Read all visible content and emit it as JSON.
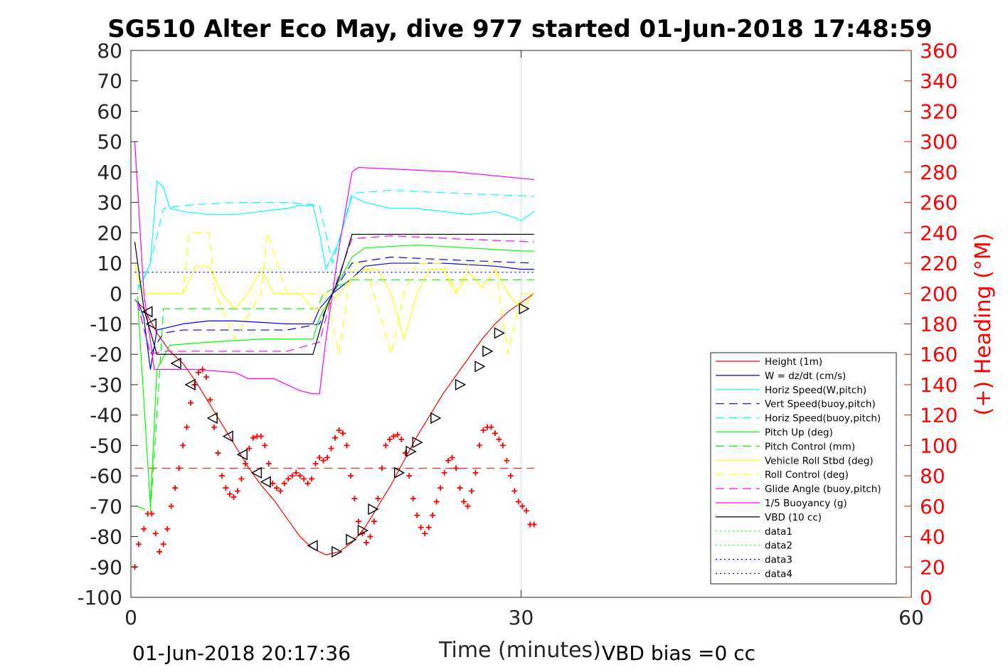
{
  "chart_data": {
    "type": "line",
    "title": "SG510 Alter Eco May, dive 977 started 01-Jun-2018 17:48:59",
    "xlabel": "Time (minutes)",
    "ylabel_right": "(+) Heading (°M)",
    "xlim": [
      0,
      60
    ],
    "ylim": [
      -100,
      80
    ],
    "ylim_right": [
      0,
      360
    ],
    "x_ticks": [
      "0",
      "30",
      "60"
    ],
    "y_ticks": [
      "80",
      "70",
      "60",
      "50",
      "40",
      "30",
      "20",
      "10",
      "0",
      "-10",
      "-20",
      "-30",
      "-40",
      "-50",
      "-60",
      "-70",
      "-80",
      "-90",
      "-100"
    ],
    "y_ticks_right": [
      "360",
      "340",
      "320",
      "300",
      "280",
      "260",
      "240",
      "220",
      "200",
      "180",
      "160",
      "140",
      "120",
      "100",
      "80",
      "60",
      "40",
      "20",
      "0"
    ],
    "grid": "x-only",
    "legend_position": "lower-right",
    "footer_left": "01-Jun-2018 20:17:36",
    "footer_right": "VBD bias =0 cc",
    "series": [
      {
        "name": "Height (1m)",
        "color": "#ff0000",
        "style": "solid",
        "x": [
          0.3,
          1.0,
          2.0,
          3.0,
          4.0,
          5.0,
          6.0,
          7.0,
          8.0,
          9.0,
          10.0,
          11.0,
          12.0,
          13.0,
          14.0,
          15.0,
          16.0,
          17.0,
          18.0,
          19.0,
          20.0,
          21.0,
          22.0,
          23.0,
          24.0,
          25.0,
          26.0,
          27.0,
          28.0,
          29.0,
          30.0,
          31.0
        ],
        "y": [
          -2,
          -5,
          -13,
          -19,
          -23,
          -29,
          -36,
          -43,
          -50,
          -57,
          -63,
          -68,
          -74,
          -80,
          -84,
          -86,
          -85,
          -82,
          -77,
          -70,
          -63,
          -55,
          -47,
          -40,
          -33,
          -27,
          -21,
          -15,
          -10,
          -6,
          -3,
          0
        ]
      },
      {
        "name": "W = dz/dt (cm/s)",
        "color": "#0000ff",
        "style": "solid",
        "x": [
          0.5,
          1.0,
          1.5,
          2.0,
          3.0,
          4.0,
          6.0,
          8.0,
          10.0,
          12.0,
          14.0,
          14.5,
          15.5,
          17.0,
          18.0,
          20.0,
          22.0,
          24.0,
          26.0,
          28.0,
          30.0,
          31.0
        ],
        "y": [
          -2,
          -8,
          -25,
          -12,
          -11,
          -10,
          -9,
          -9,
          -9.5,
          -10,
          -10,
          -5,
          0,
          5,
          9,
          10,
          10,
          10,
          9.5,
          9,
          8,
          8
        ]
      },
      {
        "name": "Horiz Speed(W,pitch)",
        "color": "#00ffff",
        "style": "solid",
        "x": [
          0.5,
          1.0,
          1.5,
          2.0,
          2.5,
          3.0,
          4.0,
          6.0,
          8.0,
          10.0,
          12.0,
          13.0,
          14.0,
          14.5,
          15.0,
          16.0,
          17.0,
          18.0,
          20.0,
          22.0,
          24.0,
          26.0,
          28.0,
          29.5,
          30.0,
          31.0
        ],
        "y": [
          2,
          5,
          10,
          37,
          35,
          28,
          27,
          26,
          26,
          27,
          28,
          29,
          29,
          20,
          8,
          17,
          32,
          30,
          28,
          28,
          27,
          26,
          27,
          25,
          24,
          27
        ]
      },
      {
        "name": "Vert Speed(buoy,pitch)",
        "color": "#0000ff",
        "style": "dashed",
        "x": [
          0.5,
          1.5,
          2.5,
          4.0,
          8.0,
          12.0,
          14.5,
          15.5,
          17.0,
          20.0,
          25.0,
          31.0
        ],
        "y": [
          -3,
          -20,
          -13,
          -12,
          -12,
          -12,
          -10,
          0,
          10,
          12,
          11,
          10
        ]
      },
      {
        "name": "Horiz Speed(buoy,pitch)",
        "color": "#00ffff",
        "style": "dashed",
        "x": [
          0.5,
          1.5,
          2.5,
          4.0,
          8.0,
          12.0,
          14.5,
          15.5,
          17.0,
          20.0,
          25.0,
          31.0
        ],
        "y": [
          1,
          10,
          28,
          29,
          30,
          30,
          29,
          10,
          33,
          34,
          33,
          32
        ]
      },
      {
        "name": "Pitch Up (deg)",
        "color": "#00ff00",
        "style": "solid",
        "x": [
          0.5,
          1.5,
          2.0,
          3.0,
          6.0,
          10.0,
          14.0,
          14.5,
          15.5,
          17.0,
          18.0,
          22.0,
          26.0,
          30.0,
          31.0
        ],
        "y": [
          -1,
          -70,
          -25,
          -17,
          -16,
          -15,
          -15,
          -8,
          0,
          12,
          15,
          16,
          15,
          14,
          14
        ]
      },
      {
        "name": "Pitch Control (mm)",
        "color": "#00ff00",
        "style": "dashed",
        "x": [
          0.5,
          1.5,
          2.0,
          2.5,
          14.3,
          14.8,
          17.0,
          31.0
        ],
        "y": [
          -70,
          -72,
          -40,
          -5,
          -5,
          0,
          4.5,
          4.5
        ]
      },
      {
        "name": "Vehicle Roll Stbd (deg)",
        "color": "#ffff00",
        "style": "solid",
        "x": [
          0.3,
          1.0,
          4.0,
          5.0,
          6.0,
          7.0,
          8.0,
          9.0,
          10.0,
          11.0,
          12.0,
          13.0,
          14.0,
          15.0,
          16.0,
          17.0,
          18.0,
          19.0,
          20.0,
          21.0,
          22.0,
          23.0,
          24.0,
          25.0,
          26.0,
          27.0,
          28.0,
          29.0,
          30.0,
          31.0
        ],
        "y": [
          8,
          0,
          0,
          9,
          9,
          0,
          -5,
          0,
          8,
          0,
          0,
          0,
          -5,
          -5,
          0,
          5,
          8,
          8,
          0,
          -15,
          0,
          8,
          8,
          0,
          7,
          2,
          8,
          0,
          -5,
          0
        ]
      },
      {
        "name": "Roll Control (deg)",
        "color": "#ffff00",
        "style": "dashed",
        "x": [
          0.3,
          1.0,
          4.0,
          4.5,
          6.0,
          6.5,
          8.0,
          10.0,
          10.5,
          12.0,
          15.0,
          16.0,
          17.0,
          18.0,
          20.0,
          21.0,
          22.0,
          24.0,
          25.0,
          26.0,
          28.0,
          29.0,
          30.0,
          31.0
        ],
        "y": [
          10,
          0,
          0,
          20,
          20,
          0,
          -15,
          0,
          20,
          0,
          0,
          -20,
          10,
          10,
          -20,
          0,
          10,
          10,
          0,
          10,
          10,
          -20,
          0,
          0
        ]
      },
      {
        "name": "Glide Angle (buoy,pitch)",
        "color": "#ff00ff",
        "style": "dashed",
        "x": [
          0.5,
          1.5,
          2.5,
          4.0,
          8.0,
          12.0,
          14.5,
          15.5,
          17.0,
          20.0,
          25.0,
          31.0
        ],
        "y": [
          -3,
          -20,
          -19,
          -19,
          -19,
          -19,
          -16,
          0,
          18,
          19,
          18,
          17
        ]
      },
      {
        "name": "1/5 Buoyancy (g)",
        "color": "#ff00ff",
        "style": "solid",
        "x": [
          0.3,
          1.0,
          1.8,
          2.5,
          5.0,
          8.0,
          9.0,
          10.0,
          11.0,
          12.0,
          13.0,
          14.0,
          14.5,
          15.0,
          16.0,
          17.0,
          17.5,
          20.0,
          25.0,
          31.0
        ],
        "y": [
          50,
          0,
          -25,
          -25,
          -25,
          -26,
          -28,
          -28,
          -28,
          -30,
          -32,
          -33,
          -33,
          -15,
          15,
          40,
          41.5,
          41,
          40,
          37.5
        ]
      },
      {
        "name": "VBD (10 cc)",
        "color": "#000000",
        "style": "solid",
        "x": [
          0.3,
          1.0,
          2.0,
          3.0,
          14.0,
          15.0,
          16.0,
          17.0,
          31.0
        ],
        "y": [
          17,
          -5,
          -20,
          -20,
          -20,
          -5,
          5,
          19.5,
          19.5
        ]
      },
      {
        "name": "data1",
        "color": "#00ff00",
        "style": "dotted",
        "x": [],
        "y": []
      },
      {
        "name": "data2",
        "color": "#00ff00",
        "style": "dotted",
        "x": [],
        "y": []
      },
      {
        "name": "data3",
        "color": "#0000ff",
        "style": "dotted",
        "x": [
          0.3,
          31.0
        ],
        "y": [
          7,
          7
        ]
      },
      {
        "name": "data4",
        "color": "#0000ff",
        "style": "dotted",
        "x": [
          0.3,
          31.0
        ],
        "y": [
          -7,
          -7
        ]
      }
    ],
    "reference_line": {
      "color": "#ff0000",
      "style": "dashed",
      "x": [
        0.3,
        31.0
      ],
      "y": [
        -57.5,
        -57.5
      ]
    },
    "heading": {
      "axis": "right",
      "color": "#ff0000",
      "marker": "+",
      "x": [
        0.3,
        0.6,
        1.0,
        1.3,
        1.6,
        1.9,
        2.2,
        2.5,
        2.8,
        3.1,
        3.4,
        3.7,
        4.0,
        4.3,
        4.6,
        4.9,
        5.2,
        5.5,
        5.8,
        6.1,
        6.4,
        6.7,
        7.0,
        7.3,
        7.6,
        7.9,
        8.2,
        8.5,
        8.8,
        9.1,
        9.4,
        9.7,
        10.0,
        10.3,
        10.6,
        10.9,
        11.2,
        11.5,
        11.8,
        12.1,
        12.4,
        12.7,
        13.0,
        13.3,
        13.6,
        13.9,
        14.2,
        14.5,
        14.8,
        15.1,
        15.4,
        15.7,
        16.0,
        16.3,
        16.6,
        16.9,
        17.2,
        17.5,
        17.8,
        18.1,
        18.4,
        18.7,
        19.0,
        19.3,
        19.6,
        19.9,
        20.2,
        20.5,
        20.8,
        21.1,
        21.4,
        21.7,
        22.0,
        22.3,
        22.6,
        22.9,
        23.2,
        23.5,
        23.8,
        24.1,
        24.4,
        24.7,
        25.0,
        25.3,
        25.6,
        25.9,
        26.2,
        26.5,
        26.8,
        27.1,
        27.4,
        27.7,
        28.0,
        28.3,
        28.6,
        28.9,
        29.2,
        29.5,
        29.8,
        30.1,
        30.4,
        30.7,
        31.0
      ],
      "y": [
        20,
        35,
        45,
        55,
        55,
        42,
        30,
        35,
        45,
        60,
        72,
        85,
        100,
        112,
        128,
        140,
        148,
        150,
        145,
        130,
        112,
        95,
        80,
        72,
        68,
        66,
        70,
        78,
        88,
        98,
        105,
        106,
        106,
        100,
        88,
        75,
        72,
        70,
        75,
        78,
        80,
        82,
        80,
        78,
        75,
        78,
        88,
        92,
        90,
        92,
        98,
        105,
        110,
        108,
        100,
        80,
        65,
        50,
        42,
        36,
        40,
        50,
        65,
        85,
        100,
        104,
        106,
        107,
        104,
        95,
        80,
        65,
        54,
        46,
        42,
        46,
        54,
        63,
        72,
        82,
        90,
        92,
        85,
        72,
        63,
        60,
        70,
        82,
        100,
        110,
        112,
        112,
        108,
        104,
        100,
        90,
        80,
        70,
        63,
        60,
        57,
        48,
        48
      ]
    },
    "depth_markers": {
      "color": "#000000",
      "x": [
        1.3,
        1.6,
        3.5,
        4.6,
        6.3,
        7.5,
        8.6,
        9.7,
        10.4,
        14.0,
        15.8,
        16.9,
        17.8,
        18.6,
        20.6,
        21.5,
        22.0,
        23.4,
        25.3,
        26.8,
        27.4,
        28.3,
        30.2
      ],
      "y": [
        -6,
        -10,
        -23,
        -30,
        -41,
        -47,
        -53,
        -59,
        -62,
        -83,
        -85,
        -81,
        -78,
        -71,
        -59,
        -52,
        -49,
        -41,
        -30,
        -24,
        -19,
        -13,
        -5
      ]
    }
  }
}
